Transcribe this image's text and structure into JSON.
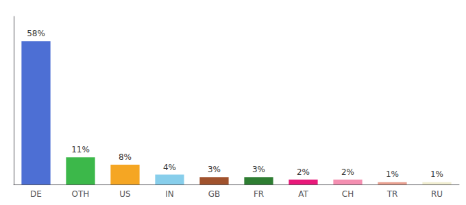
{
  "chart_data": {
    "type": "bar",
    "categories": [
      "DE",
      "OTH",
      "US",
      "IN",
      "GB",
      "FR",
      "AT",
      "CH",
      "TR",
      "RU"
    ],
    "values": [
      58,
      11,
      8,
      4,
      3,
      3,
      2,
      2,
      1,
      1
    ],
    "value_labels": [
      "58%",
      "11%",
      "8%",
      "4%",
      "3%",
      "3%",
      "2%",
      "2%",
      "1%",
      "1%"
    ],
    "colors": [
      "#4d6fd4",
      "#3cb84a",
      "#f5a623",
      "#87ceeb",
      "#a0522d",
      "#2e7d32",
      "#e8197a",
      "#f48fb1",
      "#e8a090",
      "#f0edd0"
    ],
    "ylim": [
      0,
      68
    ],
    "data_labels": true,
    "tick_labels": "x",
    "grid": false
  }
}
